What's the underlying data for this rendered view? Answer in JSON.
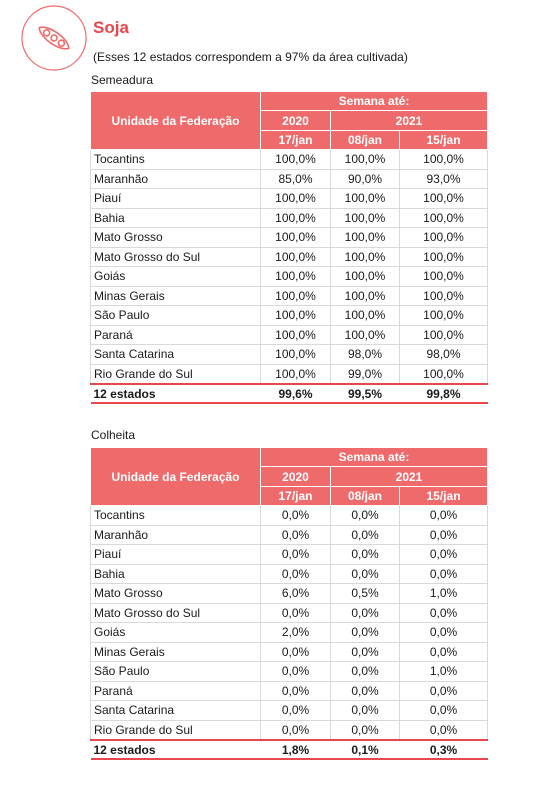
{
  "header": {
    "title": "Soja",
    "subtitle": "(Esses 12 estados correspondem a 97% da área cultivada)"
  },
  "tables": [
    {
      "caption": "Semeadura",
      "column_header": "Unidade da Federação",
      "group_header": "Semana até:",
      "years": [
        "2020",
        "2021"
      ],
      "weeks": [
        "17/jan",
        "08/jan",
        "15/jan"
      ],
      "rows": [
        [
          "Tocantins",
          "100,0%",
          "100,0%",
          "100,0%"
        ],
        [
          "Maranhão",
          "85,0%",
          "90,0%",
          "93,0%"
        ],
        [
          "Piauí",
          "100,0%",
          "100,0%",
          "100,0%"
        ],
        [
          "Bahia",
          "100,0%",
          "100,0%",
          "100,0%"
        ],
        [
          "Mato Grosso",
          "100,0%",
          "100,0%",
          "100,0%"
        ],
        [
          "Mato Grosso do Sul",
          "100,0%",
          "100,0%",
          "100,0%"
        ],
        [
          "Goiás",
          "100,0%",
          "100,0%",
          "100,0%"
        ],
        [
          "Minas Gerais",
          "100,0%",
          "100,0%",
          "100,0%"
        ],
        [
          "São Paulo",
          "100,0%",
          "100,0%",
          "100,0%"
        ],
        [
          "Paraná",
          "100,0%",
          "100,0%",
          "100,0%"
        ],
        [
          "Santa Catarina",
          "100,0%",
          "98,0%",
          "98,0%"
        ],
        [
          "Rio Grande do Sul",
          "100,0%",
          "99,0%",
          "100,0%"
        ]
      ],
      "total": [
        "12 estados",
        "99,6%",
        "99,5%",
        "99,8%"
      ]
    },
    {
      "caption": "Colheita",
      "column_header": "Unidade da Federação",
      "group_header": "Semana até:",
      "years": [
        "2020",
        "2021"
      ],
      "weeks": [
        "17/jan",
        "08/jan",
        "15/jan"
      ],
      "rows": [
        [
          "Tocantins",
          "0,0%",
          "0,0%",
          "0,0%"
        ],
        [
          "Maranhão",
          "0,0%",
          "0,0%",
          "0,0%"
        ],
        [
          "Piauí",
          "0,0%",
          "0,0%",
          "0,0%"
        ],
        [
          "Bahia",
          "0,0%",
          "0,0%",
          "0,0%"
        ],
        [
          "Mato Grosso",
          "6,0%",
          "0,5%",
          "1,0%"
        ],
        [
          "Mato Grosso do Sul",
          "0,0%",
          "0,0%",
          "0,0%"
        ],
        [
          "Goiás",
          "2,0%",
          "0,0%",
          "0,0%"
        ],
        [
          "Minas Gerais",
          "0,0%",
          "0,0%",
          "0,0%"
        ],
        [
          "São Paulo",
          "0,0%",
          "0,0%",
          "1,0%"
        ],
        [
          "Paraná",
          "0,0%",
          "0,0%",
          "0,0%"
        ],
        [
          "Santa Catarina",
          "0,0%",
          "0,0%",
          "0,0%"
        ],
        [
          "Rio Grande do Sul",
          "0,0%",
          "0,0%",
          "0,0%"
        ]
      ],
      "total": [
        "12 estados",
        "1,8%",
        "0,1%",
        "0,3%"
      ]
    }
  ]
}
